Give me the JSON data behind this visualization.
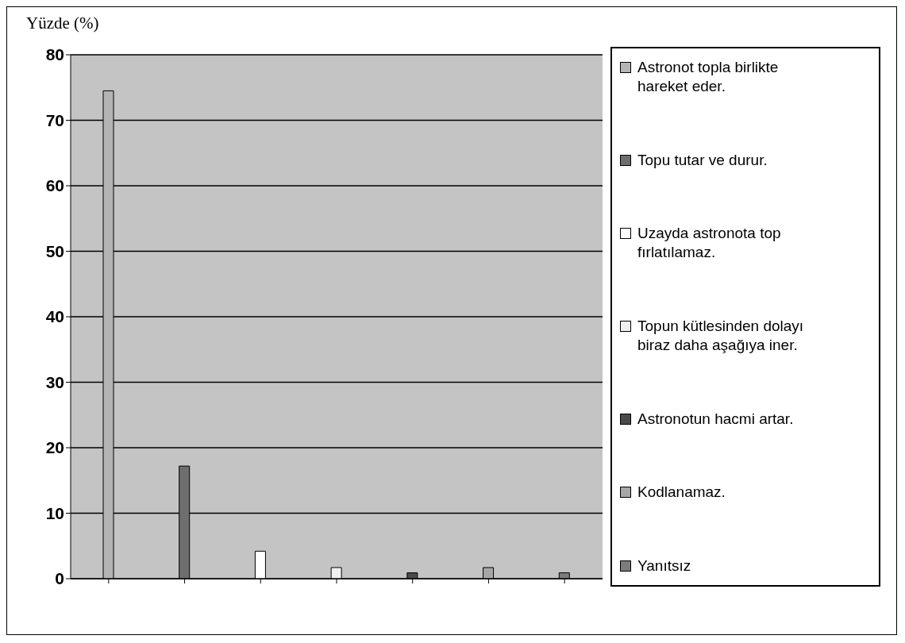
{
  "chart_data": {
    "type": "bar",
    "ylabel": "Yüzde (%)",
    "categories": [
      null,
      null,
      null,
      null,
      null,
      null,
      null
    ],
    "series": [
      {
        "name": "Astronot topla birlikte hareket eder.",
        "color": "#b4b4b4",
        "values": [
          74.5,
          null,
          null,
          null,
          null,
          null,
          null
        ]
      },
      {
        "name": "Topu tutar ve durur.",
        "color": "#6e6e6e",
        "values": [
          null,
          17.2,
          null,
          null,
          null,
          null,
          null
        ]
      },
      {
        "name": "Uzayda astronota top fırlatılamaz.",
        "color": "#ffffff",
        "values": [
          null,
          null,
          4.2,
          null,
          null,
          null,
          null
        ]
      },
      {
        "name": "Topun kütlesinden dolayı biraz daha aşağıya iner.",
        "color": "#f0f0f0",
        "values": [
          null,
          null,
          null,
          1.7,
          null,
          null,
          null
        ]
      },
      {
        "name": "Astronotun hacmi artar.",
        "color": "#4a4a4a",
        "values": [
          null,
          null,
          null,
          null,
          0.9,
          null,
          null
        ]
      },
      {
        "name": "Kodlanamaz.",
        "color": "#a6a6a6",
        "values": [
          null,
          null,
          null,
          null,
          null,
          1.7,
          null
        ]
      },
      {
        "name": "Yanıtsız",
        "color": "#7c7c7c",
        "values": [
          null,
          null,
          null,
          null,
          null,
          null,
          0.9
        ]
      }
    ],
    "ylim": [
      0,
      80
    ],
    "yticks": [
      0,
      10,
      20,
      30,
      40,
      50,
      60,
      70,
      80
    ],
    "grid": "y",
    "legend": "right"
  }
}
